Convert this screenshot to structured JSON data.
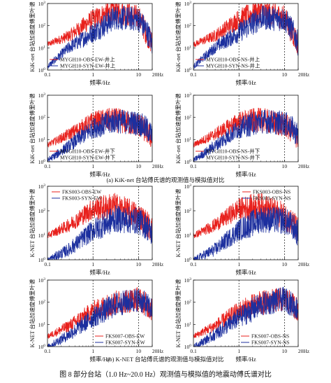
{
  "colors": {
    "obs": "#e8201c",
    "syn": "#1c2f9e",
    "axis": "#111111"
  },
  "axes": {
    "xtick_labels": [
      "0.1",
      "1",
      "10",
      "20Hz"
    ],
    "xlabel": "频率/Hz",
    "ylabel_kik": "KiK-net 台站加速度傅里叶谱",
    "ylabel_knet": "K-NET 台站加速度傅里叶谱",
    "xscale": "log",
    "xlim": [
      0.1,
      20
    ],
    "yscale": "log",
    "ytick_exponents": [
      0,
      1,
      2,
      3
    ],
    "ylim": [
      1,
      1000
    ]
  },
  "captions": {
    "a": "(a) KiK-net 台站傅氏谱的观测值与模拟值对比",
    "b": "(b) K-NET 台站傅氏谱的观测值与模拟值对比",
    "figure": "图 8    部分台站（1.0 Hz~20.0 Hz）观测值与模拟值的地震动傅氏谱对比"
  },
  "chart_data": [
    {
      "id": "MYGH10-EW-surface",
      "type": "line",
      "legend_position": "bottom-left",
      "series": [
        {
          "name": "MYGH10-OBS-EW-井上",
          "level": [
            [
              0.1,
              15
            ],
            [
              0.3,
              40
            ],
            [
              1,
              250
            ],
            [
              3,
              600
            ],
            [
              10,
              300
            ],
            [
              15,
              60
            ],
            [
              20,
              20
            ]
          ]
        },
        {
          "name": "MYGH10-SYN-EW-井上",
          "level": [
            [
              0.1,
              1.5
            ],
            [
              0.3,
              12
            ],
            [
              1,
              60
            ],
            [
              3,
              300
            ],
            [
              10,
              250
            ],
            [
              15,
              80
            ],
            [
              20,
              20
            ]
          ]
        }
      ]
    },
    {
      "id": "MYGH10-NS-surface",
      "type": "line",
      "legend_position": "bottom-left",
      "series": [
        {
          "name": "MYGH10-OBS-NS-井上",
          "level": [
            [
              0.1,
              15
            ],
            [
              0.3,
              40
            ],
            [
              1,
              250
            ],
            [
              3,
              600
            ],
            [
              10,
              300
            ],
            [
              15,
              60
            ],
            [
              20,
              20
            ]
          ]
        },
        {
          "name": "MYGH10-SYN-NS-井上",
          "level": [
            [
              0.1,
              1.5
            ],
            [
              0.3,
              12
            ],
            [
              1,
              60
            ],
            [
              3,
              300
            ],
            [
              10,
              250
            ],
            [
              15,
              80
            ],
            [
              20,
              20
            ]
          ]
        }
      ]
    },
    {
      "id": "MYGH10-EW-borehole",
      "type": "line",
      "legend_position": "bottom-left",
      "series": [
        {
          "name": "MYGH10-OBS-EW-井下",
          "level": [
            [
              0.1,
              6
            ],
            [
              0.3,
              20
            ],
            [
              1,
              80
            ],
            [
              3,
              100
            ],
            [
              10,
              60
            ],
            [
              15,
              30
            ],
            [
              20,
              15
            ]
          ]
        },
        {
          "name": "MYGH10-SYN-EW-井下",
          "level": [
            [
              0.1,
              1.2
            ],
            [
              0.3,
              6
            ],
            [
              1,
              40
            ],
            [
              3,
              90
            ],
            [
              10,
              70
            ],
            [
              15,
              40
            ],
            [
              20,
              20
            ]
          ]
        }
      ]
    },
    {
      "id": "MYGH10-NS-borehole",
      "type": "line",
      "legend_position": "bottom-left",
      "series": [
        {
          "name": "MYGH10-OBS-NS-井下",
          "level": [
            [
              0.1,
              6
            ],
            [
              0.3,
              20
            ],
            [
              1,
              80
            ],
            [
              3,
              100
            ],
            [
              10,
              60
            ],
            [
              15,
              30
            ],
            [
              20,
              15
            ]
          ]
        },
        {
          "name": "MYGH10-SYN-NS-井下",
          "level": [
            [
              0.1,
              1.2
            ],
            [
              0.3,
              6
            ],
            [
              1,
              40
            ],
            [
              3,
              90
            ],
            [
              10,
              70
            ],
            [
              15,
              40
            ],
            [
              20,
              20
            ]
          ]
        }
      ]
    },
    {
      "id": "FKS003-EW",
      "type": "line",
      "legend_position": "top-left",
      "series": [
        {
          "name": "FKS003-OBS-EW",
          "level": [
            [
              0.1,
              10
            ],
            [
              0.3,
              30
            ],
            [
              1,
              150
            ],
            [
              3,
              200
            ],
            [
              10,
              80
            ],
            [
              15,
              40
            ],
            [
              20,
              20
            ]
          ]
        },
        {
          "name": "FKS003-SYN-EW",
          "level": [
            [
              0.1,
              1
            ],
            [
              0.3,
              3
            ],
            [
              1,
              20
            ],
            [
              3,
              60
            ],
            [
              10,
              50
            ],
            [
              15,
              30
            ],
            [
              20,
              15
            ]
          ]
        }
      ]
    },
    {
      "id": "FKS003-NS",
      "type": "line",
      "legend_position": "top-right",
      "series": [
        {
          "name": "FKS003-OBS-NS",
          "level": [
            [
              0.1,
              10
            ],
            [
              0.3,
              30
            ],
            [
              1,
              150
            ],
            [
              3,
              200
            ],
            [
              10,
              80
            ],
            [
              15,
              40
            ],
            [
              20,
              20
            ]
          ]
        },
        {
          "name": "FKS003-SYN-NS",
          "level": [
            [
              0.1,
              1
            ],
            [
              0.3,
              3
            ],
            [
              1,
              20
            ],
            [
              3,
              60
            ],
            [
              10,
              50
            ],
            [
              15,
              30
            ],
            [
              20,
              15
            ]
          ]
        }
      ]
    },
    {
      "id": "FKS007-EW",
      "type": "line",
      "legend_position": "bottom-right",
      "series": [
        {
          "name": "FKS007-OBS-EW",
          "level": [
            [
              0.1,
              3
            ],
            [
              0.3,
              10
            ],
            [
              1,
              50
            ],
            [
              3,
              120
            ],
            [
              10,
              180
            ],
            [
              15,
              100
            ],
            [
              20,
              60
            ]
          ]
        },
        {
          "name": "FKS007-SYN-EW",
          "level": [
            [
              0.1,
              1
            ],
            [
              0.3,
              4
            ],
            [
              1,
              25
            ],
            [
              3,
              100
            ],
            [
              10,
              180
            ],
            [
              15,
              100
            ],
            [
              20,
              60
            ]
          ]
        }
      ]
    },
    {
      "id": "FKS007-NS",
      "type": "line",
      "legend_position": "bottom-right",
      "series": [
        {
          "name": "FKS007-OBS-NS",
          "level": [
            [
              0.1,
              3
            ],
            [
              0.3,
              10
            ],
            [
              1,
              50
            ],
            [
              3,
              120
            ],
            [
              10,
              180
            ],
            [
              15,
              100
            ],
            [
              20,
              60
            ]
          ]
        },
        {
          "name": "FKS007-SYN-NS",
          "level": [
            [
              0.1,
              1
            ],
            [
              0.3,
              4
            ],
            [
              1,
              25
            ],
            [
              3,
              100
            ],
            [
              10,
              180
            ],
            [
              15,
              100
            ],
            [
              20,
              60
            ]
          ]
        }
      ]
    }
  ]
}
